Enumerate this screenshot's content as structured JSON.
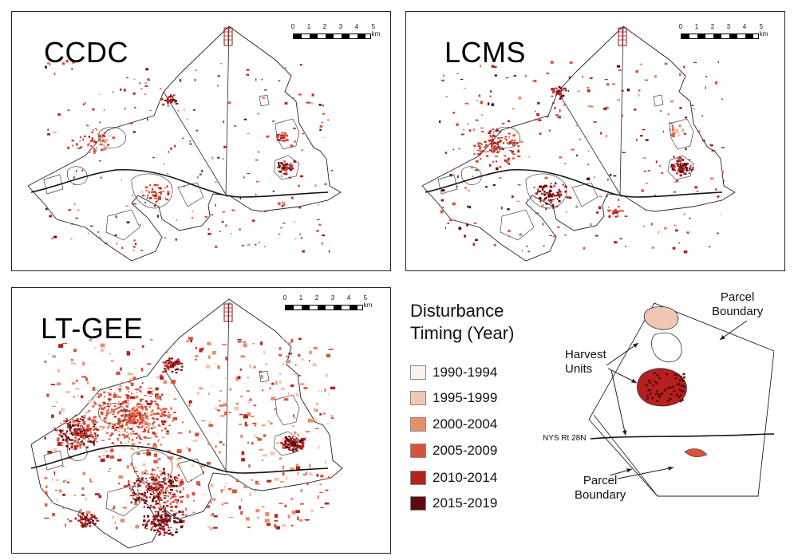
{
  "panels": {
    "ccdc": {
      "title": "CCDC"
    },
    "lcms": {
      "title": "LCMS"
    },
    "ltgee": {
      "title": "LT-GEE"
    }
  },
  "scalebar": {
    "ticks": [
      "0",
      "1",
      "2",
      "3",
      "4",
      "5 km"
    ]
  },
  "legend": {
    "title_line1": "Disturbance",
    "title_line2": "Timing (Year)",
    "items": [
      {
        "label": "1990-1994",
        "color": "#fbf1ec"
      },
      {
        "label": "1995-1999",
        "color": "#f0c7b3"
      },
      {
        "label": "2000-2004",
        "color": "#e68f6f"
      },
      {
        "label": "2005-2009",
        "color": "#d9533b"
      },
      {
        "label": "2010-2014",
        "color": "#b5211f"
      },
      {
        "label": "2015-2019",
        "color": "#5e0a10"
      }
    ]
  },
  "inset": {
    "parcel_boundary_top": [
      "Parcel",
      "Boundary"
    ],
    "harvest_units": [
      "Harvest",
      "Units"
    ],
    "road_label": "NYS Rt 28N",
    "parcel_boundary_bottom": [
      "Parcel",
      "Boundary"
    ]
  }
}
